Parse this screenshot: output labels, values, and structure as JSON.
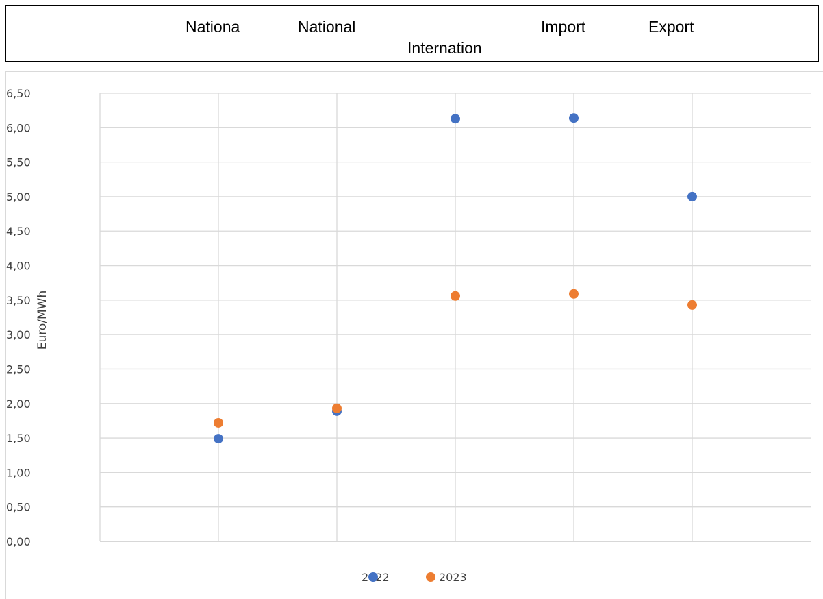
{
  "header": {
    "labels": [
      "Nationa",
      "National",
      "Internation",
      "Import",
      "Export"
    ]
  },
  "chart_data": {
    "type": "scatter",
    "categories": [
      "Nationa",
      "National",
      "Internation",
      "Import",
      "Export"
    ],
    "ylabel": "Euro/MWh",
    "ylim": [
      0,
      6.5
    ],
    "yticks": [
      "0,00",
      "0,50",
      "1,00",
      "1,50",
      "2,00",
      "2,50",
      "3,00",
      "3,50",
      "4,00",
      "4,50",
      "5,00",
      "5,50",
      "6,00",
      "6,50"
    ],
    "grid": true,
    "legend": "bottom",
    "series": [
      {
        "name": "2022",
        "color": "#4472c4",
        "values": [
          1.49,
          1.89,
          6.13,
          6.14,
          5.0
        ]
      },
      {
        "name": "2023",
        "color": "#ed7d31",
        "values": [
          1.72,
          1.93,
          3.56,
          3.59,
          3.43
        ]
      }
    ]
  }
}
